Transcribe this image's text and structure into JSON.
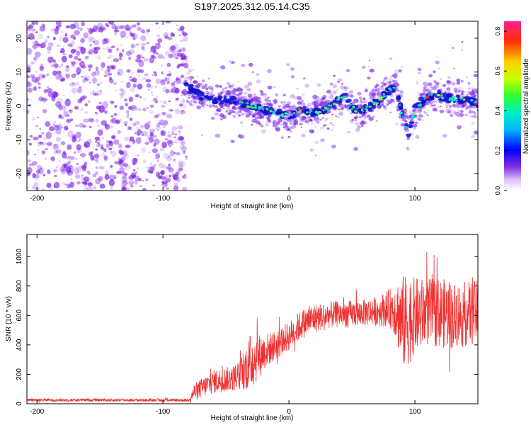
{
  "title": "S197.2025.312.05.14.C35",
  "chart_data": [
    {
      "type": "heatmap",
      "xlabel": "Height of straight line (km)",
      "ylabel": "Frequency (Hz)",
      "xlim": [
        -208,
        150
      ],
      "ylim": [
        -25,
        25
      ],
      "xticks": [
        -200,
        -100,
        0,
        100
      ],
      "yticks": [
        -20,
        -10,
        0,
        10,
        20
      ],
      "colorbar": {
        "label": "Normalized spectral amplitude",
        "range": [
          0,
          0.85
        ],
        "ticks": [
          0.0,
          0.2,
          0.4,
          0.6,
          0.8
        ]
      },
      "noise_region_end_km": -85,
      "ridge": {
        "x": [
          -82,
          -70,
          -60,
          -50,
          -40,
          -30,
          -20,
          -10,
          0,
          10,
          20,
          30,
          40,
          45,
          50,
          60,
          70,
          80,
          85,
          90,
          95,
          100,
          110,
          120,
          130,
          140,
          150
        ],
        "freq": [
          6,
          3,
          2,
          2,
          1,
          0,
          -1,
          -2,
          -3,
          -1,
          -2,
          -1,
          2,
          3,
          -1,
          -1,
          1,
          5,
          6,
          -3,
          -8,
          -1,
          3,
          3,
          2,
          2,
          1
        ]
      },
      "colors": {
        "cool": "#6000d8",
        "high": "#ff2020",
        "noise": "#7a1ee6"
      }
    },
    {
      "type": "line",
      "xlabel": "Height of straight line (km)",
      "ylabel": "SNR (10 * v/v)",
      "xlim": [
        -208,
        150
      ],
      "ylim": [
        0,
        1150
      ],
      "xticks": [
        -200,
        -100,
        0,
        100
      ],
      "yticks": [
        0,
        200,
        400,
        600,
        800,
        1000
      ],
      "envelope": {
        "x": [
          -208,
          -80,
          -75,
          -60,
          -40,
          -30,
          -20,
          -10,
          0,
          10,
          20,
          30,
          40,
          50,
          60,
          70,
          80,
          85,
          90,
          95,
          100,
          110,
          120,
          130,
          140,
          150
        ],
        "mean": [
          25,
          25,
          80,
          150,
          180,
          290,
          350,
          400,
          460,
          540,
          580,
          600,
          610,
          610,
          620,
          630,
          650,
          640,
          550,
          560,
          600,
          620,
          620,
          600,
          610,
          620
        ],
        "spread": [
          10,
          10,
          60,
          80,
          90,
          200,
          120,
          100,
          100,
          100,
          100,
          90,
          90,
          90,
          90,
          100,
          130,
          200,
          330,
          300,
          260,
          230,
          240,
          230,
          220,
          220
        ]
      },
      "color": "#f03232"
    }
  ]
}
